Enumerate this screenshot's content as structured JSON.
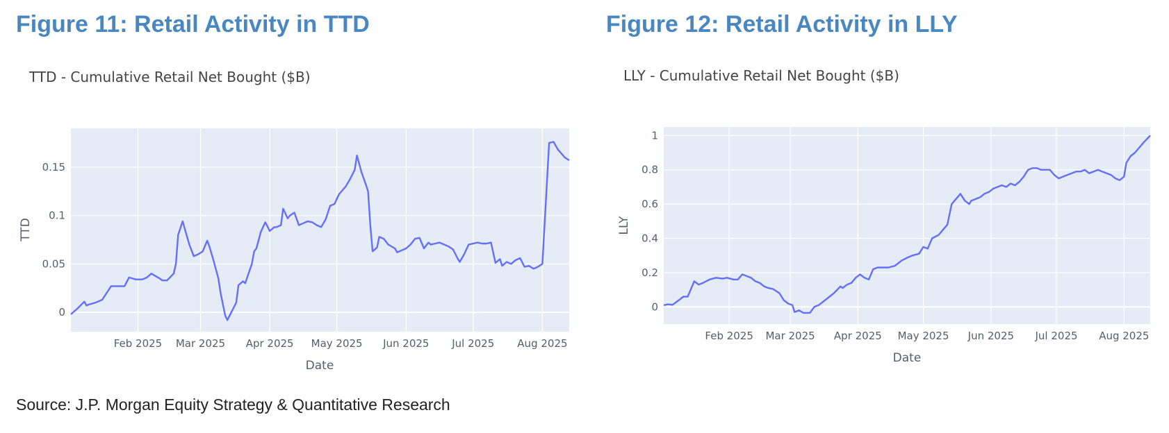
{
  "figures": [
    {
      "heading": "Figure 11: Retail Activity in TTD",
      "chart_data": {
        "type": "line",
        "title": "TTD - Cumulative Retail Net Bought ($B)",
        "xlabel": "Date",
        "ylabel": "TTD",
        "x_range": [
          "2025-01-02",
          "2025-08-13"
        ],
        "x_ticks": [
          {
            "date": "2025-02-01",
            "label": "Feb 2025"
          },
          {
            "date": "2025-03-01",
            "label": "Mar 2025"
          },
          {
            "date": "2025-04-01",
            "label": "Apr 2025"
          },
          {
            "date": "2025-05-01",
            "label": "May 2025"
          },
          {
            "date": "2025-06-01",
            "label": "Jun 2025"
          },
          {
            "date": "2025-07-01",
            "label": "Jul 2025"
          },
          {
            "date": "2025-08-01",
            "label": "Aug 2025"
          }
        ],
        "y_ticks": [
          {
            "value": 0,
            "label": "0"
          },
          {
            "value": 0.05,
            "label": "0.05"
          },
          {
            "value": 0.1,
            "label": "0.1"
          },
          {
            "value": 0.15,
            "label": "0.15"
          }
        ],
        "ylim": [
          -0.02,
          0.19
        ],
        "grid": true,
        "line_color": "#636efa",
        "plot_bg": "#e5ecf6",
        "series": [
          {
            "x": [
              "2025-01-02",
              "2025-01-05",
              "2025-01-08",
              "2025-01-09",
              "2025-01-10",
              "2025-01-13",
              "2025-01-16",
              "2025-01-20",
              "2025-01-23",
              "2025-01-26",
              "2025-01-28",
              "2025-01-31",
              "2025-02-03",
              "2025-02-05",
              "2025-02-07",
              "2025-02-10",
              "2025-02-12",
              "2025-02-14",
              "2025-02-17",
              "2025-02-18",
              "2025-02-19",
              "2025-02-21",
              "2025-02-23",
              "2025-02-24",
              "2025-02-26",
              "2025-02-28",
              "2025-03-02",
              "2025-03-04",
              "2025-03-05",
              "2025-03-07",
              "2025-03-09",
              "2025-03-10",
              "2025-03-12",
              "2025-03-13",
              "2025-03-15",
              "2025-03-17",
              "2025-03-18",
              "2025-03-20",
              "2025-03-21",
              "2025-03-24",
              "2025-03-25",
              "2025-03-26",
              "2025-03-28",
              "2025-03-30",
              "2025-04-01",
              "2025-04-03",
              "2025-04-04",
              "2025-04-06",
              "2025-04-07",
              "2025-04-09",
              "2025-04-10",
              "2025-04-12",
              "2025-04-14",
              "2025-04-16",
              "2025-04-18",
              "2025-04-20",
              "2025-04-22",
              "2025-04-24",
              "2025-04-26",
              "2025-04-28",
              "2025-04-30",
              "2025-05-02",
              "2025-05-05",
              "2025-05-07",
              "2025-05-09",
              "2025-05-10",
              "2025-05-12",
              "2025-05-14",
              "2025-05-15",
              "2025-05-16",
              "2025-05-17",
              "2025-05-19",
              "2025-05-20",
              "2025-05-22",
              "2025-05-24",
              "2025-05-27",
              "2025-05-28",
              "2025-05-30",
              "2025-06-01",
              "2025-06-03",
              "2025-06-05",
              "2025-06-07",
              "2025-06-09",
              "2025-06-11",
              "2025-06-12",
              "2025-06-14",
              "2025-06-16",
              "2025-06-18",
              "2025-06-20",
              "2025-06-22",
              "2025-06-24",
              "2025-06-25",
              "2025-06-27",
              "2025-06-29",
              "2025-07-01",
              "2025-07-03",
              "2025-07-05",
              "2025-07-07",
              "2025-07-09",
              "2025-07-11",
              "2025-07-13",
              "2025-07-14",
              "2025-07-16",
              "2025-07-18",
              "2025-07-20",
              "2025-07-22",
              "2025-07-24",
              "2025-07-26",
              "2025-07-28",
              "2025-07-30",
              "2025-08-01",
              "2025-08-04",
              "2025-08-06",
              "2025-08-07",
              "2025-08-08",
              "2025-08-11",
              "2025-08-13"
            ],
            "y": [
              -0.002,
              0.004,
              0.011,
              0.007,
              0.008,
              0.01,
              0.013,
              0.027,
              0.027,
              0.027,
              0.036,
              0.034,
              0.034,
              0.036,
              0.04,
              0.036,
              0.033,
              0.033,
              0.04,
              0.05,
              0.08,
              0.094,
              0.078,
              0.07,
              0.058,
              0.06,
              0.063,
              0.074,
              0.068,
              0.052,
              0.035,
              0.02,
              -0.003,
              -0.008,
              0.001,
              0.01,
              0.028,
              0.032,
              0.03,
              0.05,
              0.063,
              0.066,
              0.083,
              0.093,
              0.084,
              0.088,
              0.088,
              0.09,
              0.107,
              0.097,
              0.1,
              0.103,
              0.09,
              0.092,
              0.094,
              0.093,
              0.09,
              0.088,
              0.096,
              0.11,
              0.112,
              0.122,
              0.13,
              0.138,
              0.147,
              0.162,
              0.145,
              0.132,
              0.125,
              0.09,
              0.063,
              0.067,
              0.078,
              0.076,
              0.07,
              0.066,
              0.062,
              0.064,
              0.066,
              0.07,
              0.076,
              0.077,
              0.066,
              0.072,
              0.07,
              0.071,
              0.072,
              0.07,
              0.068,
              0.065,
              0.056,
              0.052,
              0.06,
              0.07,
              0.071,
              0.072,
              0.071,
              0.071,
              0.072,
              0.051,
              0.055,
              0.048,
              0.052,
              0.05,
              0.054,
              0.056,
              0.047,
              0.048,
              0.045,
              0.047,
              0.05,
              0.175,
              0.176,
              0.172,
              0.168,
              0.16,
              0.157
            ]
          }
        ]
      }
    },
    {
      "heading": "Figure 12: Retail Activity in LLY",
      "chart_data": {
        "type": "line",
        "title": "LLY - Cumulative Retail Net Bought ($B)",
        "xlabel": "Date",
        "ylabel": "LLY",
        "x_range": [
          "2025-01-02",
          "2025-08-13"
        ],
        "x_ticks": [
          {
            "date": "2025-02-01",
            "label": "Feb 2025"
          },
          {
            "date": "2025-03-01",
            "label": "Mar 2025"
          },
          {
            "date": "2025-04-01",
            "label": "Apr 2025"
          },
          {
            "date": "2025-05-01",
            "label": "May 2025"
          },
          {
            "date": "2025-06-01",
            "label": "Jun 2025"
          },
          {
            "date": "2025-07-01",
            "label": "Jul 2025"
          },
          {
            "date": "2025-08-01",
            "label": "Aug 2025"
          }
        ],
        "y_ticks": [
          {
            "value": 0,
            "label": "0"
          },
          {
            "value": 0.2,
            "label": "0.2"
          },
          {
            "value": 0.4,
            "label": "0.4"
          },
          {
            "value": 0.6,
            "label": "0.6"
          },
          {
            "value": 0.8,
            "label": "0.8"
          },
          {
            "value": 1,
            "label": "1"
          }
        ],
        "ylim": [
          -0.1,
          1.05
        ],
        "grid": true,
        "line_color": "#636efa",
        "plot_bg": "#e5ecf6",
        "series": [
          {
            "x": [
              "2025-01-02",
              "2025-01-04",
              "2025-01-06",
              "2025-01-09",
              "2025-01-11",
              "2025-01-13",
              "2025-01-16",
              "2025-01-18",
              "2025-01-20",
              "2025-01-23",
              "2025-01-26",
              "2025-01-29",
              "2025-01-31",
              "2025-02-03",
              "2025-02-05",
              "2025-02-07",
              "2025-02-09",
              "2025-02-11",
              "2025-02-13",
              "2025-02-15",
              "2025-02-17",
              "2025-02-19",
              "2025-02-21",
              "2025-02-24",
              "2025-02-26",
              "2025-02-28",
              "2025-03-02",
              "2025-03-03",
              "2025-03-05",
              "2025-03-07",
              "2025-03-10",
              "2025-03-12",
              "2025-03-14",
              "2025-03-16",
              "2025-03-19",
              "2025-03-21",
              "2025-03-24",
              "2025-03-25",
              "2025-03-27",
              "2025-03-29",
              "2025-03-31",
              "2025-04-02",
              "2025-04-04",
              "2025-04-06",
              "2025-04-08",
              "2025-04-10",
              "2025-04-12",
              "2025-04-15",
              "2025-04-18",
              "2025-04-21",
              "2025-04-24",
              "2025-04-26",
              "2025-04-29",
              "2025-05-01",
              "2025-05-03",
              "2025-05-05",
              "2025-05-08",
              "2025-05-10",
              "2025-05-12",
              "2025-05-14",
              "2025-05-16",
              "2025-05-18",
              "2025-05-20",
              "2025-05-22",
              "2025-05-23",
              "2025-05-25",
              "2025-05-27",
              "2025-05-29",
              "2025-05-31",
              "2025-06-02",
              "2025-06-04",
              "2025-06-06",
              "2025-06-08",
              "2025-06-10",
              "2025-06-12",
              "2025-06-14",
              "2025-06-16",
              "2025-06-18",
              "2025-06-20",
              "2025-06-22",
              "2025-06-24",
              "2025-06-26",
              "2025-06-28",
              "2025-06-30",
              "2025-07-02",
              "2025-07-04",
              "2025-07-06",
              "2025-07-08",
              "2025-07-10",
              "2025-07-12",
              "2025-07-14",
              "2025-07-16",
              "2025-07-18",
              "2025-07-20",
              "2025-07-22",
              "2025-07-24",
              "2025-07-26",
              "2025-07-28",
              "2025-07-30",
              "2025-08-01",
              "2025-08-02",
              "2025-08-04",
              "2025-08-06",
              "2025-08-08",
              "2025-08-10",
              "2025-08-13"
            ],
            "y": [
              0.01,
              0.015,
              0.012,
              0.04,
              0.06,
              0.06,
              0.15,
              0.13,
              0.14,
              0.16,
              0.17,
              0.165,
              0.17,
              0.16,
              0.16,
              0.19,
              0.18,
              0.17,
              0.15,
              0.14,
              0.12,
              0.11,
              0.105,
              0.08,
              0.04,
              0.02,
              0.01,
              -0.03,
              -0.02,
              -0.035,
              -0.035,
              0.0,
              0.01,
              0.03,
              0.06,
              0.08,
              0.12,
              0.11,
              0.13,
              0.14,
              0.17,
              0.19,
              0.17,
              0.16,
              0.22,
              0.23,
              0.23,
              0.23,
              0.24,
              0.27,
              0.29,
              0.3,
              0.31,
              0.35,
              0.34,
              0.4,
              0.42,
              0.45,
              0.48,
              0.6,
              0.63,
              0.66,
              0.62,
              0.6,
              0.62,
              0.63,
              0.64,
              0.66,
              0.67,
              0.69,
              0.7,
              0.71,
              0.7,
              0.72,
              0.71,
              0.73,
              0.76,
              0.8,
              0.81,
              0.81,
              0.8,
              0.8,
              0.8,
              0.77,
              0.75,
              0.76,
              0.77,
              0.78,
              0.79,
              0.79,
              0.8,
              0.78,
              0.79,
              0.8,
              0.79,
              0.78,
              0.77,
              0.75,
              0.74,
              0.76,
              0.84,
              0.88,
              0.9,
              0.93,
              0.96,
              1.0
            ]
          }
        ]
      }
    }
  ],
  "source": "Source: J.P. Morgan Equity Strategy & Quantitative Research"
}
